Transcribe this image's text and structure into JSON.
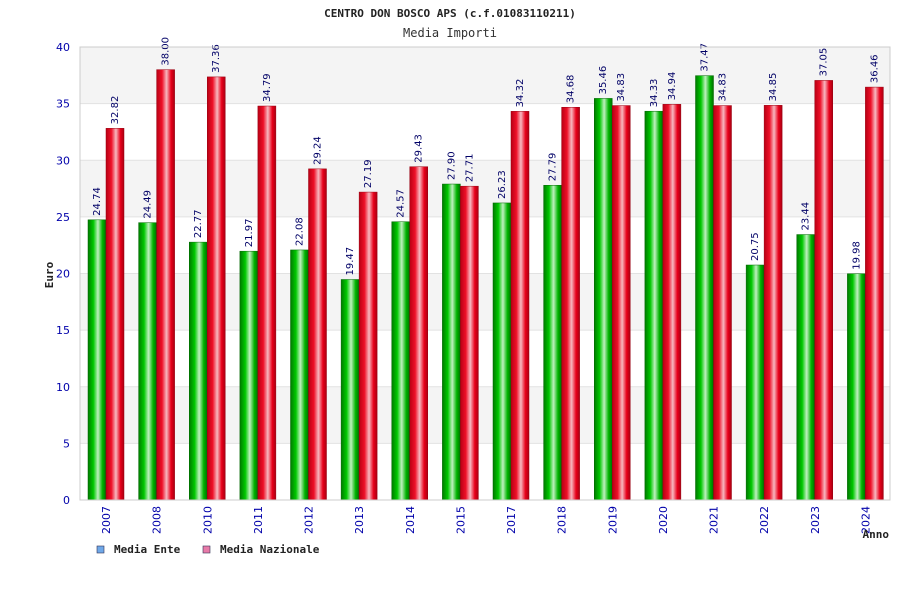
{
  "chart_data": {
    "type": "bar",
    "title": "CENTRO DON BOSCO APS (c.f.01083110211)",
    "subtitle": "Media Importi",
    "xlabel": "Anno",
    "ylabel": "Euro",
    "ylim": [
      0,
      40
    ],
    "yticks": [
      0,
      5,
      10,
      15,
      20,
      25,
      30,
      35,
      40
    ],
    "grid": true,
    "legend_position": "bottom-left",
    "categories": [
      "2007",
      "2008",
      "2010",
      "2011",
      "2012",
      "2013",
      "2014",
      "2015",
      "2017",
      "2018",
      "2019",
      "2020",
      "2021",
      "2022",
      "2023",
      "2024"
    ],
    "series": [
      {
        "name": "Media Ente",
        "values": [
          24.74,
          24.49,
          22.77,
          21.97,
          22.08,
          19.47,
          24.57,
          27.9,
          26.23,
          27.79,
          35.46,
          34.33,
          37.47,
          20.75,
          23.44,
          19.98
        ],
        "labels": [
          "24.74",
          "24.49",
          "22.77",
          "21.97",
          "22.08",
          "19.47",
          "24.57",
          "27.90",
          "26.23",
          "27.79",
          "35.46",
          "34.33",
          "37.47",
          "20.75",
          "23.44",
          "19.98"
        ],
        "bar_color": "#00aa00",
        "legend_color": "#6fa8e8"
      },
      {
        "name": "Media Nazionale",
        "values": [
          32.82,
          38.0,
          37.36,
          34.79,
          29.24,
          27.19,
          29.43,
          27.71,
          34.32,
          34.68,
          34.83,
          34.94,
          34.83,
          34.85,
          37.05,
          36.46
        ],
        "labels": [
          "32.82",
          "38.00",
          "37.36",
          "34.79",
          "29.24",
          "27.19",
          "29.43",
          "27.71",
          "34.32",
          "34.68",
          "34.83",
          "34.94",
          "34.83",
          "34.85",
          "37.05",
          "36.46"
        ],
        "bar_color": "#e8001a",
        "legend_color": "#e87aa8"
      }
    ]
  }
}
